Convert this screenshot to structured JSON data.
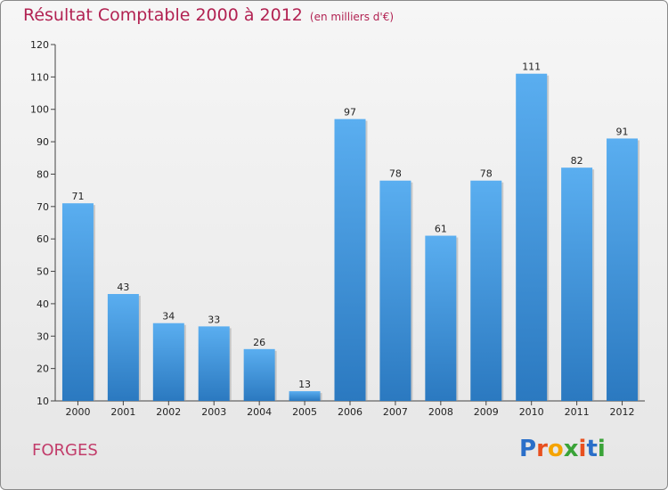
{
  "title": "Résultat Comptable 2000 à 2012",
  "subtitle": "(en milliers d'€)",
  "place": "FORGES",
  "logo": {
    "letters": [
      "P",
      "r",
      "o",
      "x",
      "i",
      "t",
      "i"
    ],
    "colors": [
      "#2a6fc9",
      "#e8501f",
      "#f5a400",
      "#3aa338",
      "#e8501f",
      "#2a6fc9",
      "#3aa338"
    ]
  },
  "colors": {
    "title": "#b22252",
    "bar_light": "#5aaef0",
    "bar_dark": "#2b79c0"
  },
  "chart_data": {
    "type": "bar",
    "categories": [
      "2000",
      "2001",
      "2002",
      "2003",
      "2004",
      "2005",
      "2006",
      "2007",
      "2008",
      "2009",
      "2010",
      "2011",
      "2012"
    ],
    "values": [
      71,
      43,
      34,
      33,
      26,
      13,
      97,
      78,
      61,
      78,
      111,
      82,
      91
    ],
    "ylim": [
      10,
      120
    ],
    "yticks": [
      10,
      20,
      30,
      40,
      50,
      60,
      70,
      80,
      90,
      100,
      110,
      120
    ],
    "grid": false,
    "data_labels": true
  }
}
